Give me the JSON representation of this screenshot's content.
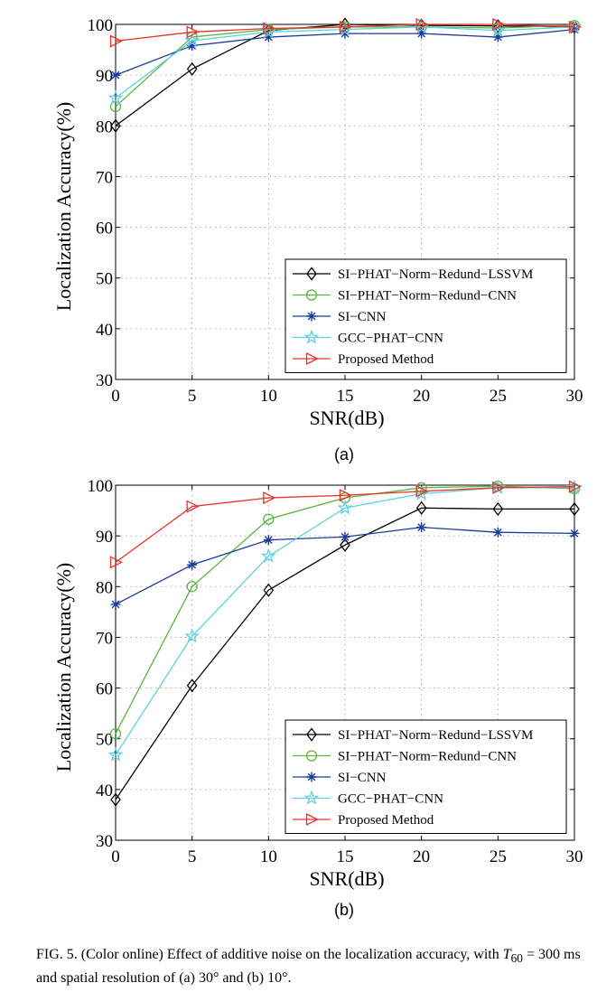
{
  "chart_data": [
    {
      "type": "line",
      "panel_label": "(a)",
      "x": [
        0,
        5,
        10,
        15,
        20,
        25,
        30
      ],
      "xlabel": "SNR(dB)",
      "ylabel": "Localization Accuracy(%)",
      "xlim": [
        0,
        30
      ],
      "ylim": [
        30,
        100
      ],
      "xticks": [
        "0",
        "5",
        "10",
        "15",
        "20",
        "25",
        "30"
      ],
      "yticks": [
        "30",
        "40",
        "50",
        "60",
        "70",
        "80",
        "90",
        "100"
      ],
      "grid": true,
      "legend_position": "bottom-right",
      "series": [
        {
          "name": "SI−PHAT−Norm−Redund−LSSVM",
          "color": "#000000",
          "marker": "diamond",
          "values": [
            80.0,
            91.2,
            98.8,
            100.0,
            99.8,
            99.7,
            99.5
          ]
        },
        {
          "name": "SI−PHAT−Norm−Redund−CNN",
          "color": "#5ab63e",
          "marker": "circle",
          "values": [
            83.8,
            97.5,
            99.0,
            99.5,
            99.5,
            99.3,
            99.8
          ]
        },
        {
          "name": "SI−CNN",
          "color": "#1a3a9c",
          "marker": "star",
          "values": [
            90.0,
            95.8,
            97.5,
            98.2,
            98.2,
            97.5,
            99.0
          ]
        },
        {
          "name": "GCC−PHAT−CNN",
          "color": "#5fd0e0",
          "marker": "pentagram",
          "values": [
            85.5,
            96.8,
            98.5,
            99.0,
            99.5,
            98.8,
            99.5
          ]
        },
        {
          "name": "Proposed Method",
          "color": "#e8322a",
          "marker": "triangle-right",
          "values": [
            96.7,
            98.5,
            99.2,
            99.5,
            100.0,
            100.0,
            99.5
          ]
        }
      ]
    },
    {
      "type": "line",
      "panel_label": "(b)",
      "x": [
        0,
        5,
        10,
        15,
        20,
        25,
        30
      ],
      "xlabel": "SNR(dB)",
      "ylabel": "Localization Accuracy(%)",
      "xlim": [
        0,
        30
      ],
      "ylim": [
        30,
        100
      ],
      "xticks": [
        "0",
        "5",
        "10",
        "15",
        "20",
        "25",
        "30"
      ],
      "yticks": [
        "30",
        "40",
        "50",
        "60",
        "70",
        "80",
        "90",
        "100"
      ],
      "grid": true,
      "legend_position": "bottom-right",
      "series": [
        {
          "name": "SI−PHAT−Norm−Redund−LSSVM",
          "color": "#000000",
          "marker": "diamond",
          "values": [
            38.0,
            60.5,
            79.3,
            88.2,
            95.5,
            95.3,
            95.3
          ]
        },
        {
          "name": "SI−PHAT−Norm−Redund−CNN",
          "color": "#5ab63e",
          "marker": "circle",
          "values": [
            51.0,
            80.0,
            93.3,
            97.5,
            99.5,
            99.8,
            99.3
          ]
        },
        {
          "name": "SI−CNN",
          "color": "#1a3a9c",
          "marker": "star",
          "values": [
            76.5,
            84.3,
            89.2,
            89.8,
            91.7,
            90.7,
            90.5
          ]
        },
        {
          "name": "GCC−PHAT−CNN",
          "color": "#5fd0e0",
          "marker": "pentagram",
          "values": [
            46.8,
            70.2,
            86.0,
            95.5,
            98.3,
            99.5,
            99.5
          ]
        },
        {
          "name": "Proposed Method",
          "color": "#e8322a",
          "marker": "triangle-right",
          "values": [
            84.8,
            95.8,
            97.5,
            98.0,
            98.8,
            99.5,
            99.7
          ]
        }
      ]
    }
  ],
  "caption": {
    "prefix": "FIG. 5. (Color online) Effect of additive noise on the localization accuracy, with ",
    "t_symbol": "T",
    "t_subscript": "60",
    "suffix": " = 300 ms and spatial resolution of (a) 30° and (b) 10°."
  }
}
